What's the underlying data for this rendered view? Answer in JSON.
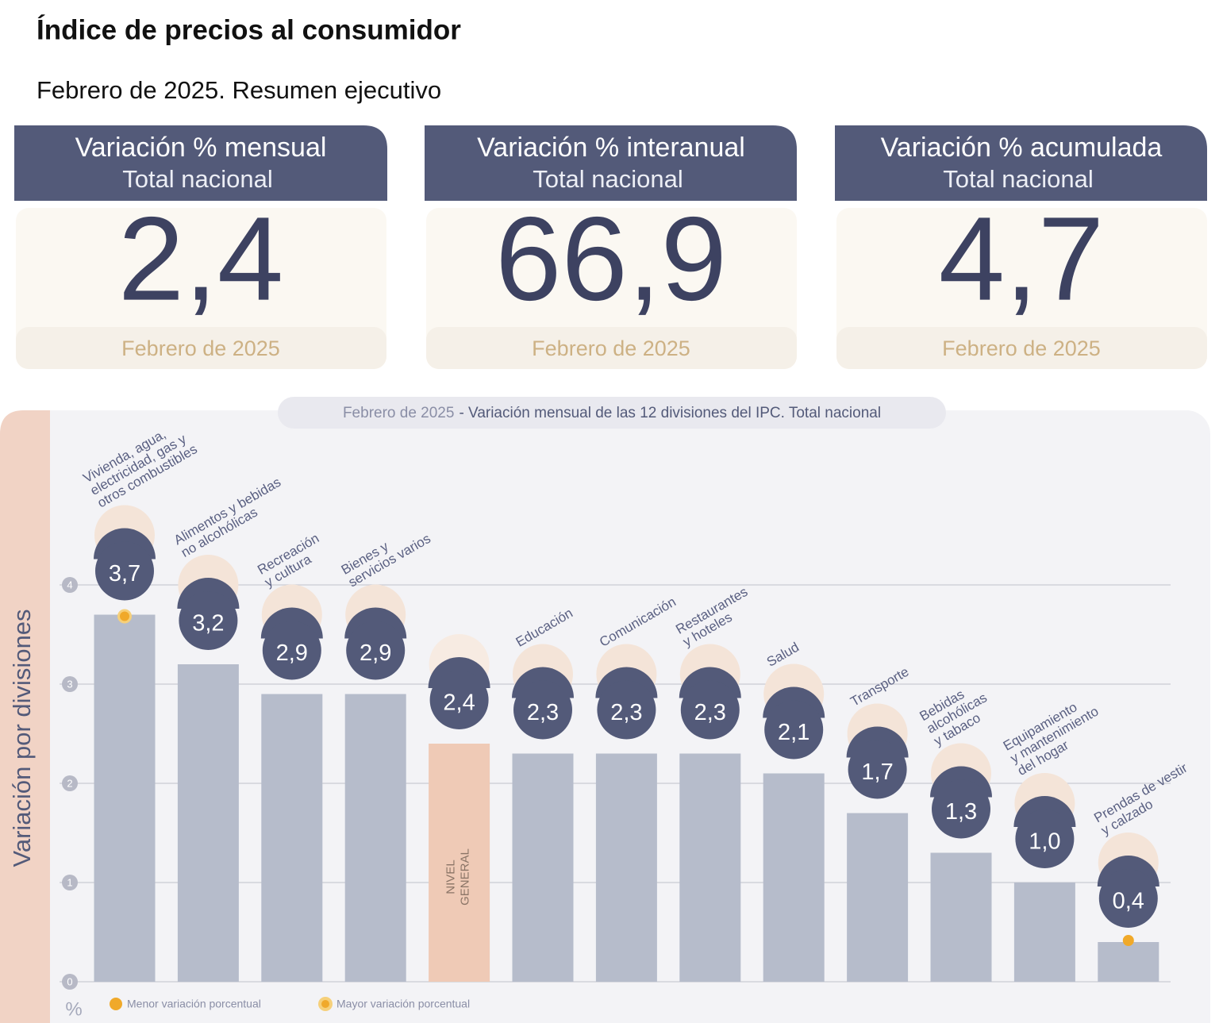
{
  "header": {
    "title": "Índice de precios al consumidor",
    "subtitle": "Febrero de 2025. Resumen ejecutivo"
  },
  "cards": [
    {
      "title": "Variación % mensual",
      "subtitle": "Total nacional",
      "value": "2,4",
      "period": "Febrero de 2025"
    },
    {
      "title": "Variación % interanual",
      "subtitle": "Total nacional",
      "value": "66,9",
      "period": "Febrero de 2025"
    },
    {
      "title": "Variación % acumulada",
      "subtitle": "Total nacional",
      "value": "4,7",
      "period": "Febrero de 2025"
    }
  ],
  "chart_data": {
    "type": "bar",
    "title_period": "Febrero de 2025",
    "title": "- Variación mensual de las 12 divisiones del IPC. Total nacional",
    "y_label": "Variación por divisiones",
    "y_unit": "%",
    "categories": [
      "Vivienda, agua,\nelectricidad, gas y\notros combustibles",
      "Alimentos y bebidas\nno alcohólicas",
      "Recreación\ny cultura",
      "Bienes y\nservicios varios",
      "NIVEL\nGENERAL",
      "Educación",
      "Comunicación",
      "Restaurantes\ny hoteles",
      "Salud",
      "Transporte",
      "Bebidas\nalcohólicas\ny tabaco",
      "Equipamiento\ny mantenimiento\ndel hogar",
      "Prendas de vestir\ny calzado"
    ],
    "values": [
      3.7,
      3.2,
      2.9,
      2.9,
      2.4,
      2.3,
      2.3,
      2.3,
      2.1,
      1.7,
      1.3,
      1.0,
      0.4
    ],
    "value_labels": [
      "3,7",
      "3,2",
      "2,9",
      "2,9",
      "2,4",
      "2,3",
      "2,3",
      "2,3",
      "2,1",
      "1,7",
      "1,3",
      "1,0",
      "0,4"
    ],
    "colors": [
      "#b6bccb",
      "#b6bccb",
      "#b6bccb",
      "#b6bccb",
      "#efcab6",
      "#b6bccb",
      "#b6bccb",
      "#b6bccb",
      "#b6bccb",
      "#b6bccb",
      "#b6bccb",
      "#b6bccb",
      "#b6bccb"
    ],
    "ylim": [
      0,
      4
    ],
    "yticks": [
      0,
      1,
      2,
      3,
      4
    ],
    "grid": true,
    "legend": [
      "Menor variación porcentual",
      "Mayor variación porcentual"
    ],
    "marker_color": "#f0a92a"
  }
}
